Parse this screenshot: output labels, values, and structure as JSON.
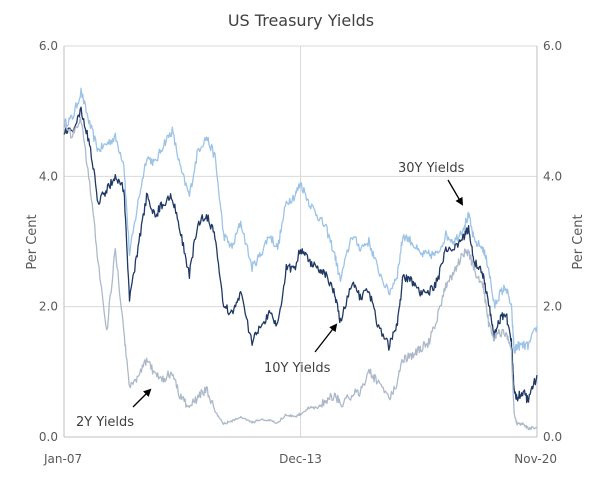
{
  "chart_data": {
    "type": "line",
    "title": "US Treasury Yields",
    "ylabel_left": "Per Cent",
    "ylabel_right": "Per Cent",
    "ylim": [
      0,
      6
    ],
    "yticks": [
      "0.0",
      "2.0",
      "4.0",
      "6.0"
    ],
    "yticks_values": [
      0,
      2,
      4,
      6
    ],
    "xticks": [
      "Jan-07",
      "Dec-13",
      "Nov-20"
    ],
    "xticks_values": [
      "2007-01",
      "2013-12",
      "2020-11"
    ],
    "x_range": [
      "2007-01",
      "2020-11"
    ],
    "grid": true,
    "colors": {
      "y30": "#9dc3e6",
      "y10": "#1f3864",
      "y2": "#adb9ca",
      "grid": "#d9d9d9",
      "axis": "#bfbfbf",
      "arrow": "#000000"
    },
    "series": [
      {
        "key": "y30",
        "x": [
          "2007-01",
          "2007-04",
          "2007-07",
          "2007-10",
          "2008-01",
          "2008-04",
          "2008-07",
          "2008-10",
          "2008-12",
          "2009-03",
          "2009-06",
          "2009-09",
          "2009-12",
          "2010-03",
          "2010-06",
          "2010-09",
          "2010-12",
          "2011-03",
          "2011-06",
          "2011-09",
          "2011-12",
          "2012-03",
          "2012-07",
          "2012-10",
          "2013-01",
          "2013-04",
          "2013-07",
          "2013-10",
          "2013-12",
          "2014-03",
          "2014-06",
          "2014-09",
          "2014-12",
          "2015-02",
          "2015-06",
          "2015-09",
          "2015-12",
          "2016-03",
          "2016-07",
          "2016-10",
          "2016-12",
          "2017-03",
          "2017-06",
          "2017-09",
          "2017-12",
          "2018-03",
          "2018-06",
          "2018-09",
          "2018-11",
          "2019-01",
          "2019-04",
          "2019-06",
          "2019-08",
          "2019-10",
          "2019-12",
          "2020-02",
          "2020-03",
          "2020-04",
          "2020-06",
          "2020-08",
          "2020-11"
        ],
        "values": [
          4.8,
          4.9,
          5.3,
          4.8,
          4.4,
          4.5,
          4.6,
          4.2,
          2.8,
          3.6,
          4.3,
          4.2,
          4.5,
          4.7,
          4.1,
          3.7,
          4.4,
          4.6,
          4.3,
          3.1,
          2.9,
          3.3,
          2.6,
          2.8,
          3.1,
          2.9,
          3.6,
          3.7,
          3.9,
          3.6,
          3.4,
          3.2,
          2.8,
          2.4,
          3.1,
          2.9,
          3.0,
          2.6,
          2.2,
          2.5,
          3.1,
          3.0,
          2.8,
          2.8,
          2.8,
          3.1,
          3.0,
          3.2,
          3.4,
          3.0,
          2.9,
          2.6,
          2.0,
          2.2,
          2.3,
          2.0,
          1.3,
          1.4,
          1.4,
          1.4,
          1.7
        ]
      },
      {
        "key": "y10",
        "x": [
          "2007-01",
          "2007-04",
          "2007-07",
          "2007-10",
          "2008-01",
          "2008-04",
          "2008-07",
          "2008-10",
          "2008-12",
          "2009-03",
          "2009-06",
          "2009-09",
          "2009-12",
          "2010-03",
          "2010-06",
          "2010-09",
          "2010-12",
          "2011-03",
          "2011-06",
          "2011-09",
          "2011-12",
          "2012-03",
          "2012-07",
          "2012-10",
          "2013-01",
          "2013-04",
          "2013-07",
          "2013-10",
          "2013-12",
          "2014-03",
          "2014-06",
          "2014-09",
          "2014-12",
          "2015-02",
          "2015-06",
          "2015-09",
          "2015-12",
          "2016-03",
          "2016-07",
          "2016-10",
          "2016-12",
          "2017-03",
          "2017-06",
          "2017-09",
          "2017-12",
          "2018-03",
          "2018-06",
          "2018-09",
          "2018-11",
          "2019-01",
          "2019-04",
          "2019-06",
          "2019-08",
          "2019-10",
          "2019-12",
          "2020-02",
          "2020-03",
          "2020-04",
          "2020-06",
          "2020-08",
          "2020-11"
        ],
        "values": [
          4.7,
          4.7,
          5.0,
          4.5,
          3.6,
          3.8,
          4.0,
          3.8,
          2.1,
          2.9,
          3.7,
          3.4,
          3.6,
          3.7,
          3.1,
          2.5,
          3.3,
          3.4,
          3.1,
          2.0,
          1.9,
          2.2,
          1.45,
          1.7,
          1.9,
          1.7,
          2.6,
          2.6,
          2.9,
          2.7,
          2.6,
          2.5,
          2.2,
          1.75,
          2.35,
          2.15,
          2.25,
          1.75,
          1.4,
          1.75,
          2.45,
          2.4,
          2.2,
          2.2,
          2.4,
          2.85,
          2.9,
          3.05,
          3.2,
          2.7,
          2.5,
          2.05,
          1.55,
          1.8,
          1.9,
          1.5,
          0.7,
          0.6,
          0.7,
          0.55,
          0.95
        ]
      },
      {
        "key": "y2",
        "x": [
          "2007-01",
          "2007-04",
          "2007-07",
          "2007-10",
          "2008-01",
          "2008-04",
          "2008-07",
          "2008-10",
          "2008-12",
          "2009-03",
          "2009-06",
          "2009-09",
          "2009-12",
          "2010-03",
          "2010-06",
          "2010-09",
          "2010-12",
          "2011-03",
          "2011-06",
          "2011-09",
          "2011-12",
          "2012-03",
          "2012-07",
          "2012-10",
          "2013-01",
          "2013-04",
          "2013-07",
          "2013-10",
          "2013-12",
          "2014-03",
          "2014-06",
          "2014-09",
          "2014-12",
          "2015-02",
          "2015-06",
          "2015-09",
          "2015-12",
          "2016-03",
          "2016-07",
          "2016-10",
          "2016-12",
          "2017-03",
          "2017-06",
          "2017-09",
          "2017-12",
          "2018-03",
          "2018-06",
          "2018-09",
          "2018-11",
          "2019-01",
          "2019-04",
          "2019-06",
          "2019-08",
          "2019-10",
          "2019-12",
          "2020-02",
          "2020-03",
          "2020-04",
          "2020-06",
          "2020-08",
          "2020-11"
        ],
        "values": [
          4.8,
          4.6,
          4.9,
          3.9,
          2.7,
          1.6,
          2.9,
          1.6,
          0.8,
          0.9,
          1.2,
          0.95,
          0.9,
          1.0,
          0.6,
          0.45,
          0.6,
          0.75,
          0.4,
          0.2,
          0.25,
          0.3,
          0.22,
          0.27,
          0.25,
          0.22,
          0.35,
          0.3,
          0.35,
          0.45,
          0.45,
          0.55,
          0.65,
          0.5,
          0.65,
          0.7,
          1.0,
          0.85,
          0.6,
          0.85,
          1.2,
          1.25,
          1.35,
          1.45,
          1.85,
          2.3,
          2.55,
          2.8,
          2.85,
          2.55,
          2.35,
          1.75,
          1.5,
          1.6,
          1.6,
          1.35,
          0.35,
          0.2,
          0.2,
          0.13,
          0.15
        ]
      }
    ],
    "annotations": [
      {
        "text": "30Y Yields",
        "series": "y30",
        "x": "2018-07",
        "y": 3.5
      },
      {
        "text": "10Y Yields",
        "series": "y10",
        "x": "2014-12",
        "y": 1.6
      },
      {
        "text": "2Y Yields",
        "series": "y2",
        "x": "2009-04",
        "y": 0.75
      }
    ]
  }
}
